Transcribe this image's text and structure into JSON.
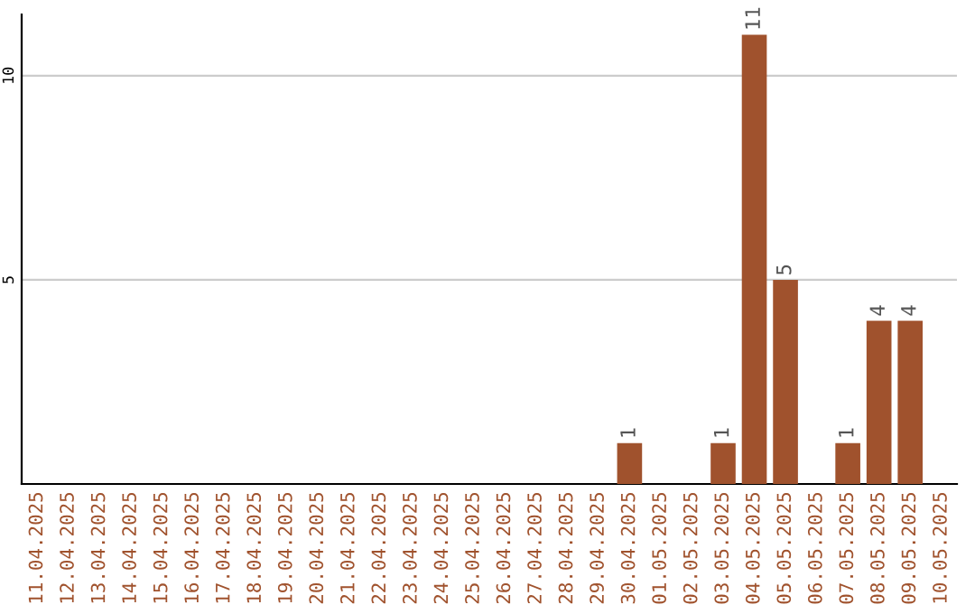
{
  "chart_data": {
    "type": "bar",
    "categories": [
      "11.04.2025",
      "12.04.2025",
      "13.04.2025",
      "14.04.2025",
      "15.04.2025",
      "16.04.2025",
      "17.04.2025",
      "18.04.2025",
      "19.04.2025",
      "20.04.2025",
      "21.04.2025",
      "22.04.2025",
      "23.04.2025",
      "24.04.2025",
      "25.04.2025",
      "26.04.2025",
      "27.04.2025",
      "28.04.2025",
      "29.04.2025",
      "30.04.2025",
      "01.05.2025",
      "02.05.2025",
      "03.05.2025",
      "04.05.2025",
      "05.05.2025",
      "06.05.2025",
      "07.05.2025",
      "08.05.2025",
      "09.05.2025",
      "10.05.2025"
    ],
    "values": [
      0,
      0,
      0,
      0,
      0,
      0,
      0,
      0,
      0,
      0,
      0,
      0,
      0,
      0,
      0,
      0,
      0,
      0,
      0,
      1,
      0,
      0,
      1,
      11,
      5,
      0,
      1,
      4,
      4,
      0
    ],
    "value_labels": [
      null,
      null,
      null,
      null,
      null,
      null,
      null,
      null,
      null,
      null,
      null,
      null,
      null,
      null,
      null,
      null,
      null,
      null,
      null,
      "1",
      null,
      null,
      "1",
      "11",
      "5",
      null,
      "1",
      "4",
      "4",
      null
    ],
    "color": "#a0522d",
    "ylim": [
      0,
      11.5
    ],
    "yticks": [
      5,
      10
    ],
    "grid": "y"
  }
}
